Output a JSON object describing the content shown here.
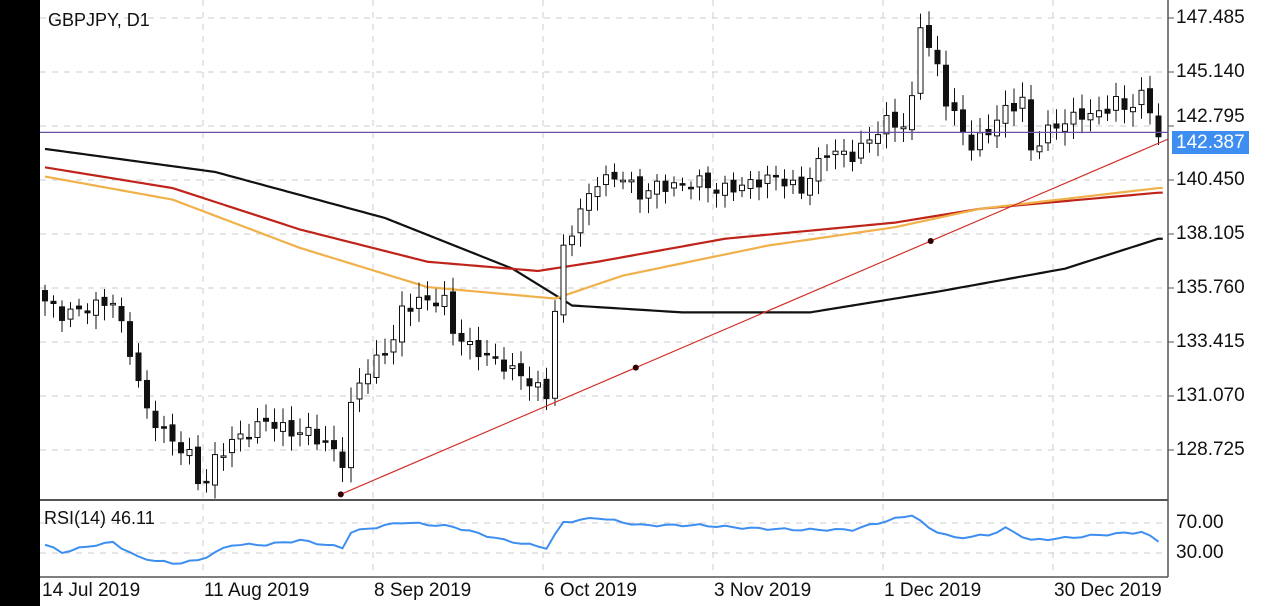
{
  "chart_data": {
    "type": "candlestick",
    "title": "GBPJPY, D1",
    "symbol": "GBPJPY",
    "timeframe": "D1",
    "last_price": "142.387",
    "y_ticks": [
      "147.485",
      "145.140",
      "142.795",
      "140.450",
      "138.105",
      "135.760",
      "133.415",
      "131.070",
      "128.725"
    ],
    "ylim": [
      126.6,
      148.2
    ],
    "x_ticks": [
      "14 Jul 2019",
      "11 Aug 2019",
      "8 Sep 2019",
      "6 Oct 2019",
      "3 Nov 2019",
      "1 Dec 2019",
      "30 Dec 2019"
    ],
    "num_candles": 132,
    "close_keypoints": [
      [
        0,
        135.2
      ],
      [
        2,
        134.6
      ],
      [
        6,
        135.0
      ],
      [
        8,
        135.2
      ],
      [
        10,
        133.0
      ],
      [
        11,
        131.7
      ],
      [
        12,
        130.4
      ],
      [
        14,
        129.5
      ],
      [
        15,
        129.1
      ],
      [
        17,
        128.5
      ],
      [
        18,
        127.4
      ],
      [
        19,
        127.4
      ],
      [
        20,
        128.3
      ],
      [
        22,
        129.1
      ],
      [
        24,
        129.5
      ],
      [
        26,
        130.0
      ],
      [
        29,
        129.5
      ],
      [
        31,
        129.5
      ],
      [
        34,
        128.7
      ],
      [
        35,
        128.2
      ],
      [
        35.5,
        130.0
      ],
      [
        37,
        131.7
      ],
      [
        39,
        132.6
      ],
      [
        41,
        133.5
      ],
      [
        42,
        134.8
      ],
      [
        44,
        135.2
      ],
      [
        47,
        135.2
      ],
      [
        48,
        133.9
      ],
      [
        50,
        133.2
      ],
      [
        52,
        132.8
      ],
      [
        55,
        132.2
      ],
      [
        57,
        131.7
      ],
      [
        59,
        131.1
      ],
      [
        60,
        134.8
      ],
      [
        61,
        137.4
      ],
      [
        63,
        139.1
      ],
      [
        65,
        140.4
      ],
      [
        68,
        140.6
      ],
      [
        70,
        139.8
      ],
      [
        72,
        140.2
      ],
      [
        75,
        140.2
      ],
      [
        77,
        140.4
      ],
      [
        79,
        140.0
      ],
      [
        82,
        140.2
      ],
      [
        84,
        140.4
      ],
      [
        86,
        140.6
      ],
      [
        89,
        140.0
      ],
      [
        90,
        140.6
      ],
      [
        92,
        141.7
      ],
      [
        95,
        141.5
      ],
      [
        97,
        142.2
      ],
      [
        99,
        143.0
      ],
      [
        101,
        142.8
      ],
      [
        102,
        143.9
      ],
      [
        103,
        147.3
      ],
      [
        104,
        146.1
      ],
      [
        105,
        145.4
      ],
      [
        106,
        143.9
      ],
      [
        108,
        142.6
      ],
      [
        109,
        141.9
      ],
      [
        111,
        142.6
      ],
      [
        113,
        143.5
      ],
      [
        115,
        143.9
      ],
      [
        116,
        141.7
      ],
      [
        118,
        142.6
      ],
      [
        120,
        143.0
      ],
      [
        122,
        143.3
      ],
      [
        124,
        143.3
      ],
      [
        126,
        143.9
      ],
      [
        127,
        143.5
      ],
      [
        129,
        144.1
      ],
      [
        130,
        143.5
      ],
      [
        131,
        142.4
      ]
    ],
    "moving_averages": [
      {
        "color": "#111111",
        "keypoints": [
          [
            0,
            141.8
          ],
          [
            20,
            140.8
          ],
          [
            40,
            138.8
          ],
          [
            55,
            136.6
          ],
          [
            62,
            135.0
          ],
          [
            75,
            134.7
          ],
          [
            90,
            134.7
          ],
          [
            105,
            135.6
          ],
          [
            120,
            136.6
          ],
          [
            131,
            137.9
          ]
        ]
      },
      {
        "color": "#c0231a",
        "keypoints": [
          [
            0,
            141.0
          ],
          [
            15,
            140.1
          ],
          [
            30,
            138.3
          ],
          [
            45,
            136.9
          ],
          [
            58,
            136.5
          ],
          [
            65,
            136.9
          ],
          [
            80,
            137.9
          ],
          [
            100,
            138.6
          ],
          [
            110,
            139.2
          ],
          [
            131,
            139.9
          ]
        ]
      },
      {
        "color": "#f0b04a",
        "keypoints": [
          [
            0,
            140.6
          ],
          [
            15,
            139.6
          ],
          [
            30,
            137.5
          ],
          [
            45,
            135.8
          ],
          [
            60,
            135.3
          ],
          [
            68,
            136.3
          ],
          [
            85,
            137.6
          ],
          [
            100,
            138.4
          ],
          [
            110,
            139.2
          ],
          [
            131,
            140.1
          ]
        ]
      }
    ],
    "trendline": {
      "color": "#d0302a",
      "points": [
        [
          34.8,
          126.8
        ],
        [
          69.5,
          132.3
        ],
        [
          104.2,
          137.8
        ]
      ]
    },
    "horizontal_line": {
      "price": 142.387,
      "color": "#6a4fa8"
    },
    "rsi": {
      "label": "RSI(14) 46.11",
      "levels": [
        "70.00",
        "30.00"
      ],
      "color": "#3d8ef0",
      "keypoints": [
        [
          0,
          41
        ],
        [
          2,
          31
        ],
        [
          6,
          41
        ],
        [
          8,
          44
        ],
        [
          11,
          24
        ],
        [
          15,
          16
        ],
        [
          18,
          20
        ],
        [
          22,
          41
        ],
        [
          26,
          41
        ],
        [
          30,
          47
        ],
        [
          35,
          37
        ],
        [
          36,
          58
        ],
        [
          42,
          71
        ],
        [
          48,
          65
        ],
        [
          54,
          47
        ],
        [
          59,
          37
        ],
        [
          61,
          71
        ],
        [
          65,
          77
        ],
        [
          70,
          67
        ],
        [
          77,
          67
        ],
        [
          83,
          63
        ],
        [
          89,
          61
        ],
        [
          95,
          61
        ],
        [
          98,
          70
        ],
        [
          102,
          81
        ],
        [
          104,
          63
        ],
        [
          107,
          50
        ],
        [
          111,
          54
        ],
        [
          113,
          63
        ],
        [
          116,
          47
        ],
        [
          120,
          50
        ],
        [
          124,
          54
        ],
        [
          129,
          58
        ],
        [
          131,
          46
        ]
      ]
    }
  }
}
